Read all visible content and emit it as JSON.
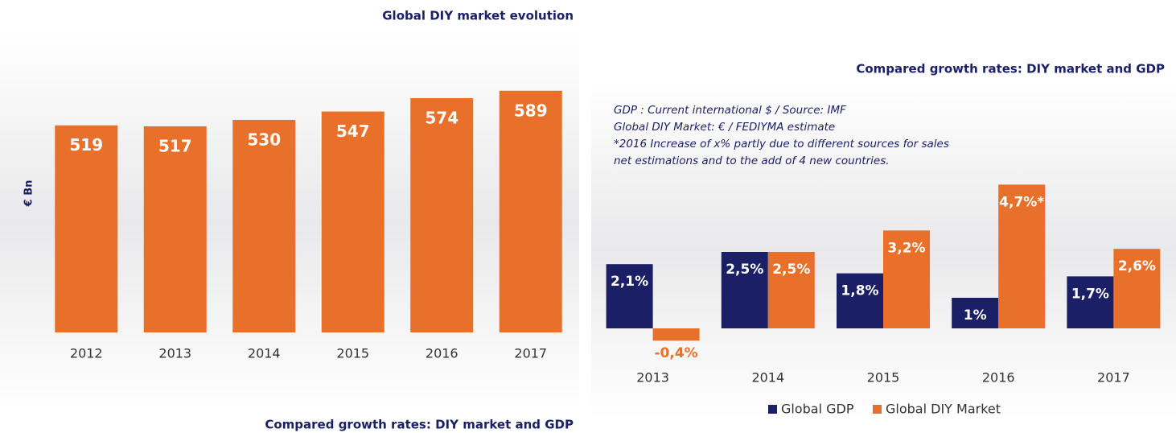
{
  "chart_data": [
    {
      "type": "bar",
      "title": "Global DIY market evolution",
      "y_label": "€ Bn",
      "categories": [
        "2012",
        "2013",
        "2014",
        "2015",
        "2016",
        "2017"
      ],
      "values": [
        519,
        517,
        530,
        547,
        574,
        589
      ],
      "color": "#e8702a",
      "ylim": [
        100,
        600
      ]
    },
    {
      "type": "grouped_bar",
      "title": "Compared growth rates: DIY market and GDP",
      "annotations": [
        "GDP : Current international $ / Source: IMF",
        "Global DIY Market: € / FEDIYMA estimate",
        "*2016 Increase of x% partly due to different sources for sales",
        "net estimations and to the add of 4 new countries."
      ],
      "categories": [
        "2013",
        "2014",
        "2015",
        "2016",
        "2017"
      ],
      "series": [
        {
          "name": "Global GDP",
          "color": "#1b1f66",
          "values": [
            2.1,
            2.5,
            1.8,
            1,
            1.7
          ],
          "value_labels": [
            "2,1%",
            "2,5%",
            "1,8%",
            "1%",
            "1,7%"
          ]
        },
        {
          "name": "Global DIY Market",
          "color": "#e8702a",
          "values": [
            -0.4,
            2.5,
            3.2,
            4.7,
            2.6
          ],
          "value_labels": [
            "-0,4%",
            "2,5%",
            "3,2%",
            "4,7%*",
            "2,6%"
          ]
        }
      ],
      "ylim": [
        -1,
        5
      ],
      "legend": "bottom"
    }
  ],
  "caption": "Compared growth rates: DIY market and GDP"
}
